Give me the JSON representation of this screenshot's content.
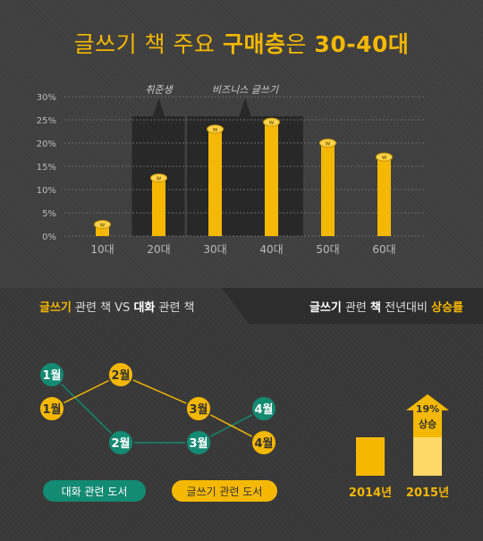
{
  "title": {
    "part1": "글쓰기 책 주요 ",
    "part2": "구매층",
    "part3": "은 ",
    "part4": "30-40대"
  },
  "chart_data": [
    {
      "type": "bar",
      "categories": [
        "10대",
        "20대",
        "30대",
        "40대",
        "50대",
        "60대"
      ],
      "values": [
        2.5,
        12.5,
        23,
        24.5,
        20,
        17
      ],
      "yticks": [
        "0%",
        "5%",
        "10%",
        "15%",
        "20%",
        "25%",
        "30%"
      ],
      "ylim": [
        0,
        30
      ],
      "grid": true,
      "annotations": [
        "취준생",
        "비즈니스 글쓰기"
      ],
      "coin_label": "W",
      "colors": {
        "bar": "#f5b800",
        "highlight": "#282828"
      }
    },
    {
      "type": "line",
      "title": {
        "a": "글쓰기",
        "b": " 관련 책 VS ",
        "c": "대화",
        "d": " 관련 책"
      },
      "x": [
        "1월",
        "2월",
        "3월",
        "4월"
      ],
      "series": [
        {
          "name": "대화 관련 도서",
          "color": "#138a72",
          "ranks": [
            4,
            2,
            2,
            3
          ]
        },
        {
          "name": "글쓰기 관련 도서",
          "color": "#f5b800",
          "ranks": [
            3,
            4,
            3,
            2
          ]
        }
      ]
    },
    {
      "type": "bar",
      "title": {
        "a": "글쓰기",
        "b": " 관련 ",
        "c": "책",
        "d": " 전년대비 ",
        "e": "상승률"
      },
      "categories": [
        "2014년",
        "2015년"
      ],
      "values": [
        100,
        119
      ],
      "annotation": {
        "pct": "19%",
        "label": "상승"
      },
      "colors": {
        "bar": "#f5b800",
        "increase": "#ffd966"
      }
    }
  ]
}
